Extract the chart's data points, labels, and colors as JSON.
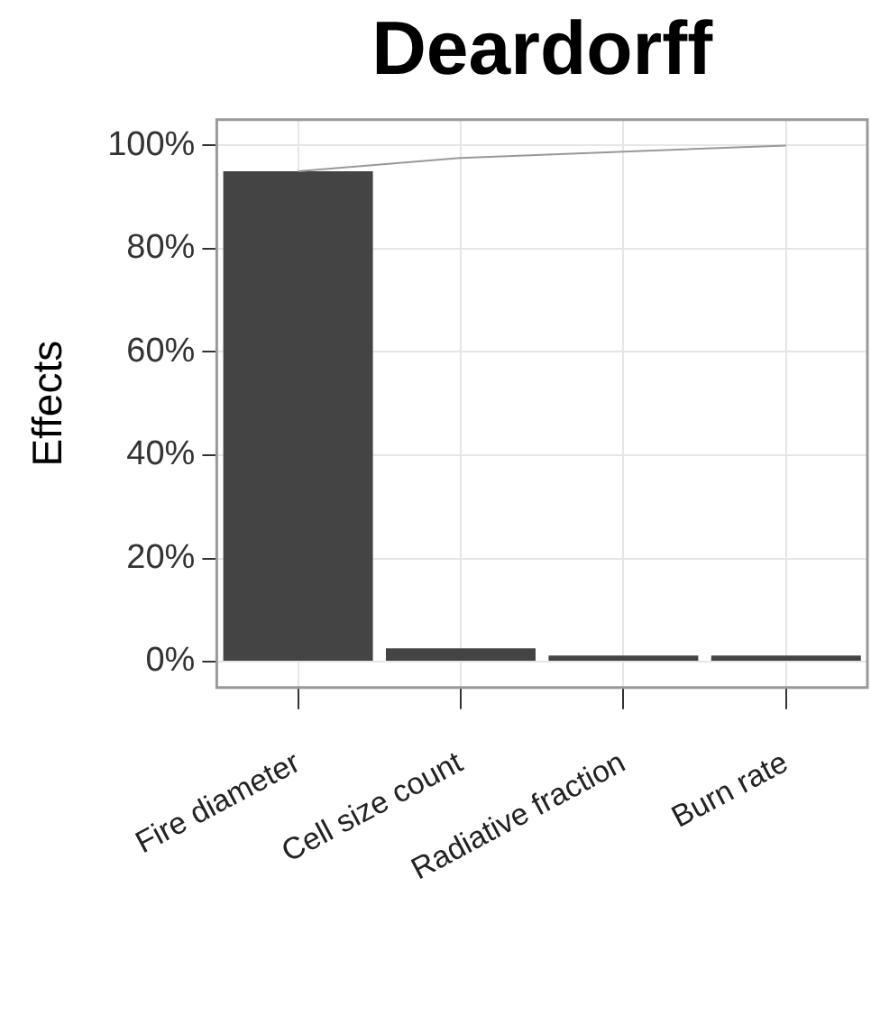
{
  "chart_data": {
    "type": "bar",
    "title": "Deardorff",
    "ylabel": "Effects",
    "categories": [
      "Fire diameter",
      "Cell size count",
      "Radiative fraction",
      "Burn rate"
    ],
    "series": [
      {
        "color": "#444444",
        "values": [
          95,
          2.6,
          1.2,
          1.2
        ]
      },
      {
        "type": "line",
        "color": "#999999",
        "values": [
          95,
          97.6,
          98.8,
          100
        ]
      }
    ],
    "ylim": [
      -5,
      105
    ],
    "yticks": [
      {
        "value": 0,
        "label": "0%"
      },
      {
        "value": 20,
        "label": "20%"
      },
      {
        "value": 40,
        "label": "40%"
      },
      {
        "value": 60,
        "label": "60%"
      },
      {
        "value": 80,
        "label": "80%"
      },
      {
        "value": 100,
        "label": "100%"
      }
    ],
    "grid": true,
    "legend": false,
    "marker": "none",
    "line_style": "solid"
  }
}
